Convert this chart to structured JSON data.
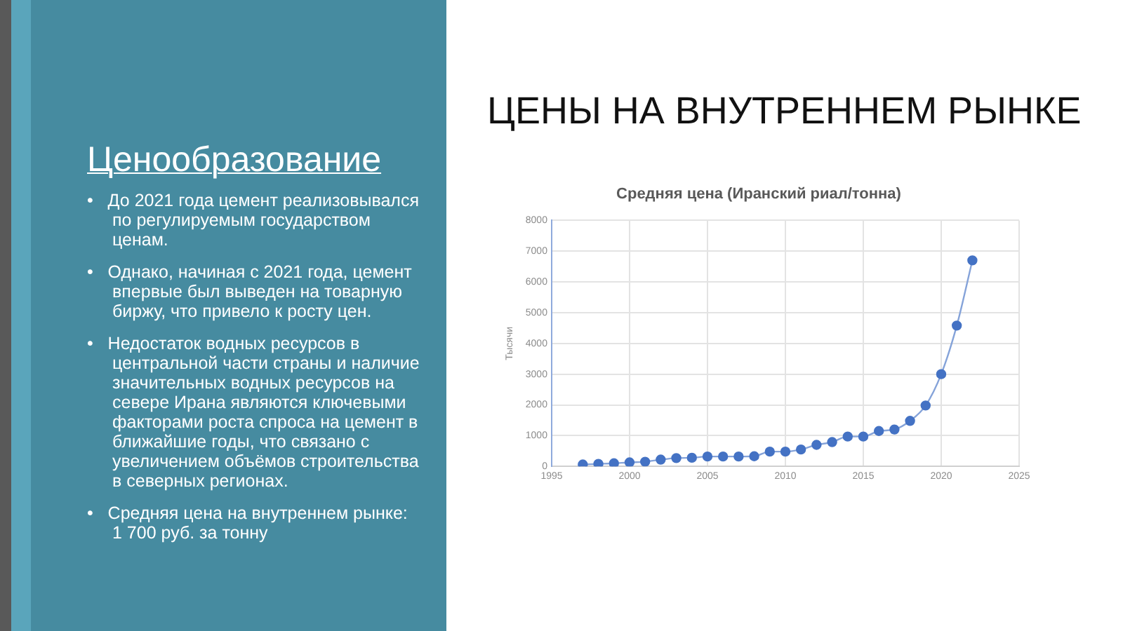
{
  "chart_data": {
    "type": "line",
    "title": "Средняя цена (Иранский риал/тонна)",
    "ylabel": "Тысячи",
    "x": [
      1997,
      1998,
      1999,
      2000,
      2001,
      2002,
      2003,
      2004,
      2005,
      2006,
      2007,
      2008,
      2009,
      2010,
      2011,
      2012,
      2013,
      2014,
      2015,
      2016,
      2017,
      2018,
      2019,
      2020,
      2021,
      2022
    ],
    "series": [
      {
        "color": "#4472c4",
        "values": [
          60,
          80,
          100,
          130,
          150,
          220,
          270,
          280,
          320,
          320,
          320,
          330,
          480,
          480,
          550,
          700,
          790,
          970,
          970,
          1150,
          1200,
          1480,
          1980,
          3000,
          4580,
          6700
        ]
      }
    ],
    "xlim": [
      1995,
      2025
    ],
    "xticks": [
      1995,
      2000,
      2005,
      2010,
      2015,
      2020,
      2025
    ],
    "ylim": [
      0,
      8000
    ],
    "yticks": [
      0,
      1000,
      2000,
      3000,
      4000,
      5000,
      6000,
      7000,
      8000
    ],
    "grid": true,
    "legend": false,
    "marker": "circle",
    "line_style": "solid",
    "annotations": [
      "ЦЕНЫ НА ВНУТРЕННЕМ РЫНКЕ",
      "Ценообразование",
      "•   До 2021 года цемент реализовывался по регулируемым государством ценам.",
      "•   Однако, начиная с 2021 года, цемент впервые был выведен на товарную биржу, что привело к росту цен.",
      "•   Недостаток водных ресурсов в центральной части страны и наличие значительных водных ресурсов на севере Ирана являются ключевыми факторами роста спроса на цемент в ближайшие годы, что связано с увеличением объёмов строительства в северных регионах.",
      "•   Средняя цена на внутреннем рынке: 1 700 руб. за тонну"
    ]
  }
}
